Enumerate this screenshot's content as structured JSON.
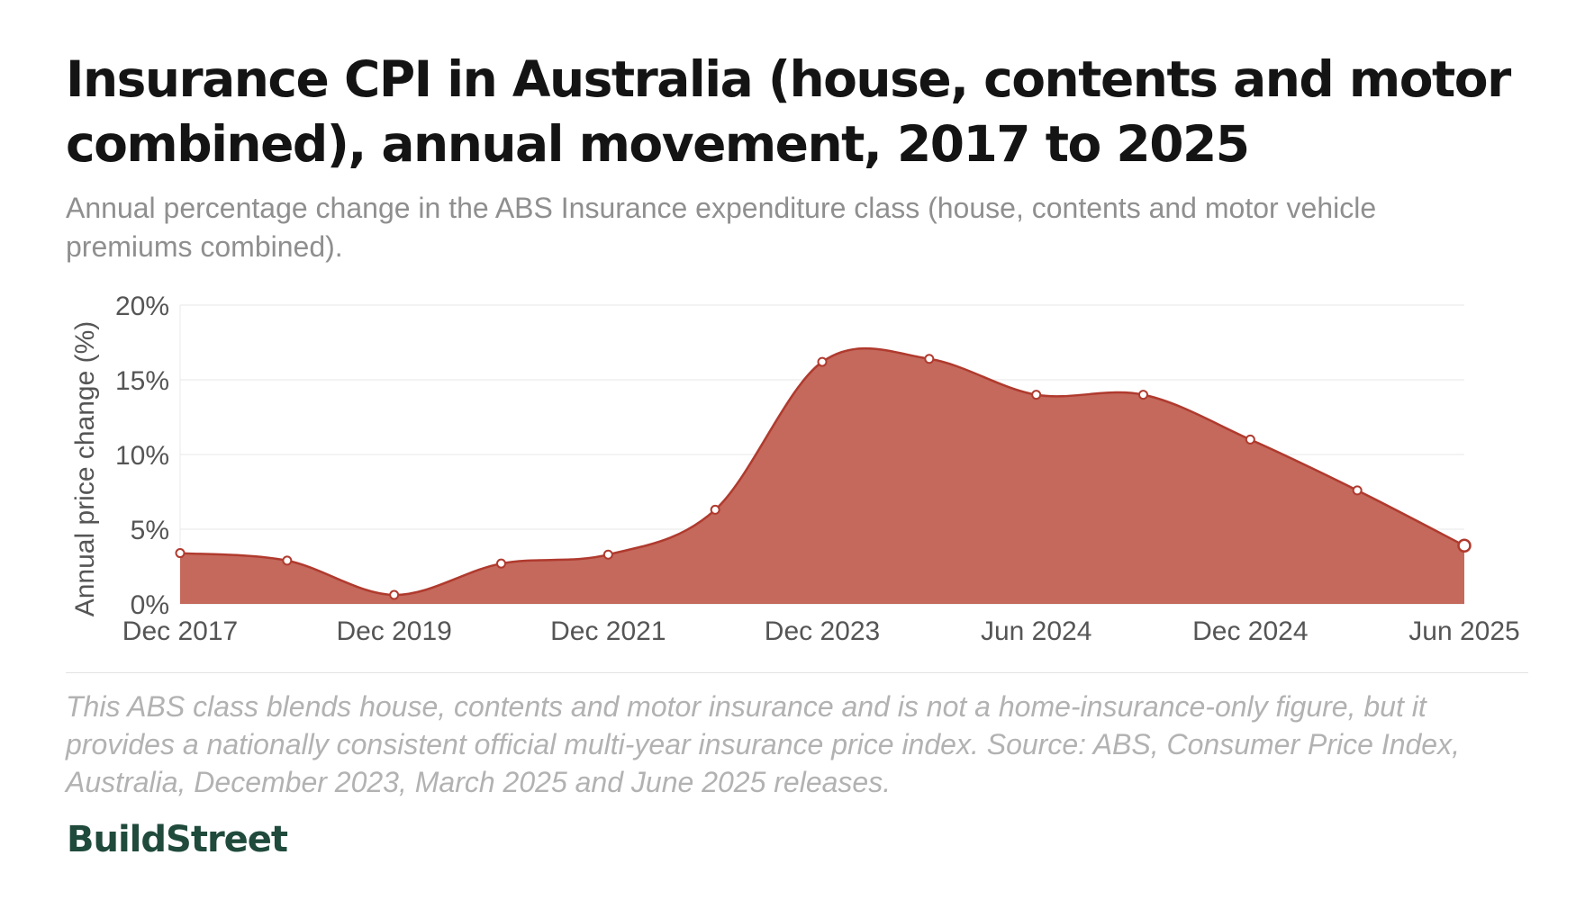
{
  "title": "Insurance CPI in Australia (house, contents and motor combined), annual movement, 2017 to 2025",
  "subtitle": "Annual percentage change in the ABS Insurance expenditure class (house, contents and motor vehicle premiums combined).",
  "note": "This ABS class blends house, contents and motor insurance and is not a home-insurance-only figure, but it provides a nationally consistent official multi-year insurance price index. Source: ABS, Consumer Price Index, Australia, December 2023, March 2025 and June 2025 releases.",
  "brand": "BuildStreet",
  "colors": {
    "area_fill": "#c4695c",
    "line": "#b03a2e",
    "marker_fill": "#ffffff",
    "gridline": "#ececec",
    "axis_text": "#555555"
  },
  "chart_data": {
    "type": "area",
    "ylabel": "Annual price change (%)",
    "xlabel": "",
    "ylim": [
      0,
      20
    ],
    "yticks": [
      {
        "value": 0,
        "label": "0%"
      },
      {
        "value": 5,
        "label": "5%"
      },
      {
        "value": 10,
        "label": "10%"
      },
      {
        "value": 15,
        "label": "15%"
      },
      {
        "value": 20,
        "label": "20%"
      }
    ],
    "x_ticks": [
      "Dec 2017",
      "Dec 2019",
      "Dec 2021",
      "Dec 2023",
      "Jun 2024",
      "Dec 2024",
      "Jun 2025"
    ],
    "x_tick_indices": [
      0,
      2,
      4,
      6,
      8,
      10,
      12
    ],
    "grid": true,
    "legend": "none",
    "points": [
      3.4,
      2.9,
      0.6,
      2.7,
      3.3,
      6.3,
      16.2,
      16.4,
      14.0,
      14.0,
      11.0,
      7.6,
      3.9
    ]
  }
}
